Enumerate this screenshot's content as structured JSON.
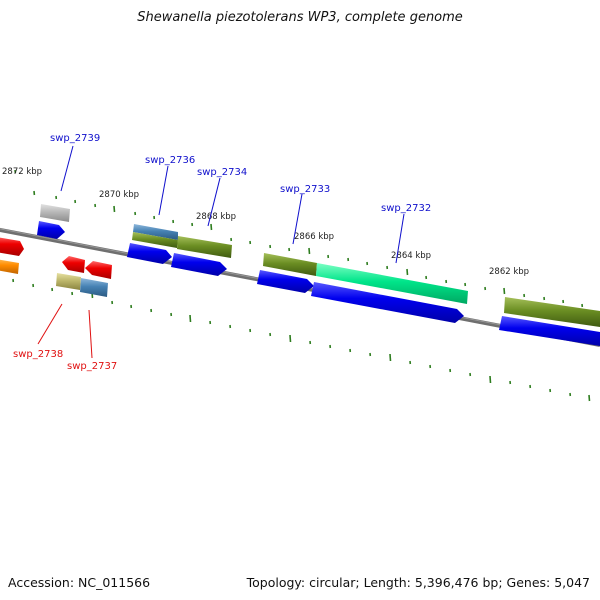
{
  "title": "Shewanella piezotolerans WP3, complete genome",
  "footer": {
    "accession": "Accession: NC_011566",
    "summary": "Topology: circular; Length: 5,396,476 bp; Genes: 5,047"
  },
  "colors": {
    "forward_cds": "#0000ee",
    "reverse_cds": "#ee0000",
    "backbone": "#7a7a7a",
    "tick": "#2e7d1f",
    "olive_feature": "#6b8e23",
    "steel_feature": "#4682b4",
    "khaki_feature": "#bdb76b",
    "spring_green_feature": "#00e58a",
    "gray_feature": "#b8b8b8",
    "orange_feature": "#ff8c00"
  },
  "kbp_labels": [
    "2872 kbp",
    "2870 kbp",
    "2868 kbp",
    "2866 kbp",
    "2864 kbp",
    "2862 kbp"
  ],
  "genes": {
    "swp_2739": "swp_2739",
    "swp_2736": "swp_2736",
    "swp_2734": "swp_2734",
    "swp_2733": "swp_2733",
    "swp_2732": "swp_2732",
    "swp_2738": "swp_2738",
    "swp_2737": "swp_2737"
  }
}
